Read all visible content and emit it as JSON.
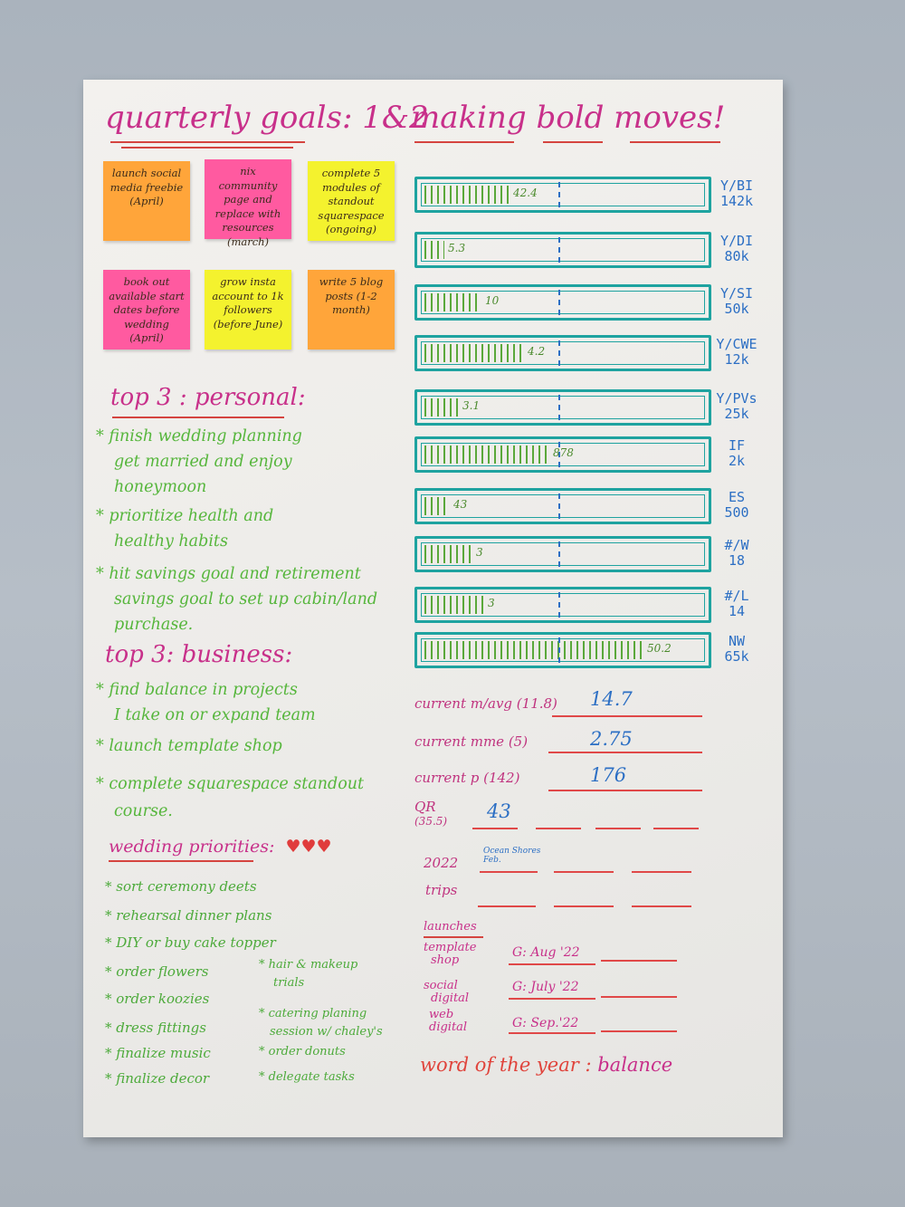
{
  "header": {
    "quarterly_title": "quarterly goals",
    "quarterly_suffix": ": 1&2",
    "bold_title": "making bold moves!"
  },
  "stickies": [
    {
      "text": "launch social media freebie (April)",
      "color": "#ffa53a"
    },
    {
      "text": "nix community page and replace with resources (march)",
      "color": "#ff5aa0"
    },
    {
      "text": "complete 5 modules of standout squarespace (ongoing)",
      "color": "#f4f22e"
    },
    {
      "text": "book out available start dates before wedding (April)",
      "color": "#ff5aa0"
    },
    {
      "text": "grow insta account to 1k followers (before June)",
      "color": "#f4f22e"
    },
    {
      "text": "write 5 blog posts (1-2 month)",
      "color": "#ffa53a"
    }
  ],
  "personal": {
    "title": "top 3 : personal:",
    "items": [
      "* finish wedding planning",
      "get married and enjoy",
      "honeymoon",
      "* prioritize health and",
      "healthy habits",
      "* hit savings goal and retirement",
      "savings goal to set up cabin/land",
      "purchase."
    ]
  },
  "business": {
    "title": "top 3: business:",
    "items": [
      "* find balance in projects",
      "I take on or expand team",
      "* launch template shop",
      "* complete squarespace standout",
      "course."
    ]
  },
  "wedding": {
    "title": "wedding priorities:",
    "hearts": "♥♥♥",
    "items_full": [
      "* sort ceremony deets",
      "* rehearsal dinner plans",
      "* DIY or buy cake topper"
    ],
    "items_left": [
      "* order flowers",
      "* order koozies",
      "* dress fittings",
      "* finalize music",
      "* finalize decor"
    ],
    "items_right": [
      "* hair & makeup",
      "trials",
      "* catering planing",
      "session w/ chaley's",
      "* order donuts",
      "* delegate tasks"
    ]
  },
  "progress_bars": [
    {
      "value_label": "42.4",
      "line1": "Y/BI",
      "line2": "142k",
      "fraction": 0.3
    },
    {
      "value_label": "5.3",
      "line1": "Y/DI",
      "line2": "80k",
      "fraction": 0.07
    },
    {
      "value_label": "10",
      "line1": "Y/SI",
      "line2": "50k",
      "fraction": 0.2
    },
    {
      "value_label": "4.2",
      "line1": "Y/CWE",
      "line2": "12k",
      "fraction": 0.35
    },
    {
      "value_label": "3.1",
      "line1": "Y/PVs",
      "line2": "25k",
      "fraction": 0.12
    },
    {
      "value_label": "878",
      "line1": "IF",
      "line2": "2k",
      "fraction": 0.44
    },
    {
      "value_label": "43",
      "line1": "ES",
      "line2": "500",
      "fraction": 0.09
    },
    {
      "value_label": "3",
      "line1": "#/W",
      "line2": "18",
      "fraction": 0.17
    },
    {
      "value_label": "3",
      "line1": "#/L",
      "line2": "14",
      "fraction": 0.21
    },
    {
      "value_label": "50.2",
      "line1": "NW",
      "line2": "65k",
      "fraction": 0.77
    }
  ],
  "metrics": [
    {
      "label": "current m/avg (11.8)",
      "value": "14.7"
    },
    {
      "label": "current mme (5)",
      "value": "2.75"
    },
    {
      "label": "current p (142)",
      "value": "176"
    }
  ],
  "qr": {
    "label1": "QR",
    "label2": "(35.5)",
    "value": "43"
  },
  "trips": {
    "label1": "2022",
    "label2": "trips",
    "first": "Ocean Shores Feb."
  },
  "launches": {
    "title": "launches",
    "rows": [
      {
        "name1": "template",
        "name2": "shop",
        "goal": "G: Aug '22"
      },
      {
        "name1": "social",
        "name2": "digital",
        "goal": "G: July '22"
      },
      {
        "name1": "web",
        "name2": "digital",
        "goal": "G: Sep.'22"
      }
    ]
  },
  "word_of_year": {
    "label": "word of the year :",
    "value": "balance"
  }
}
